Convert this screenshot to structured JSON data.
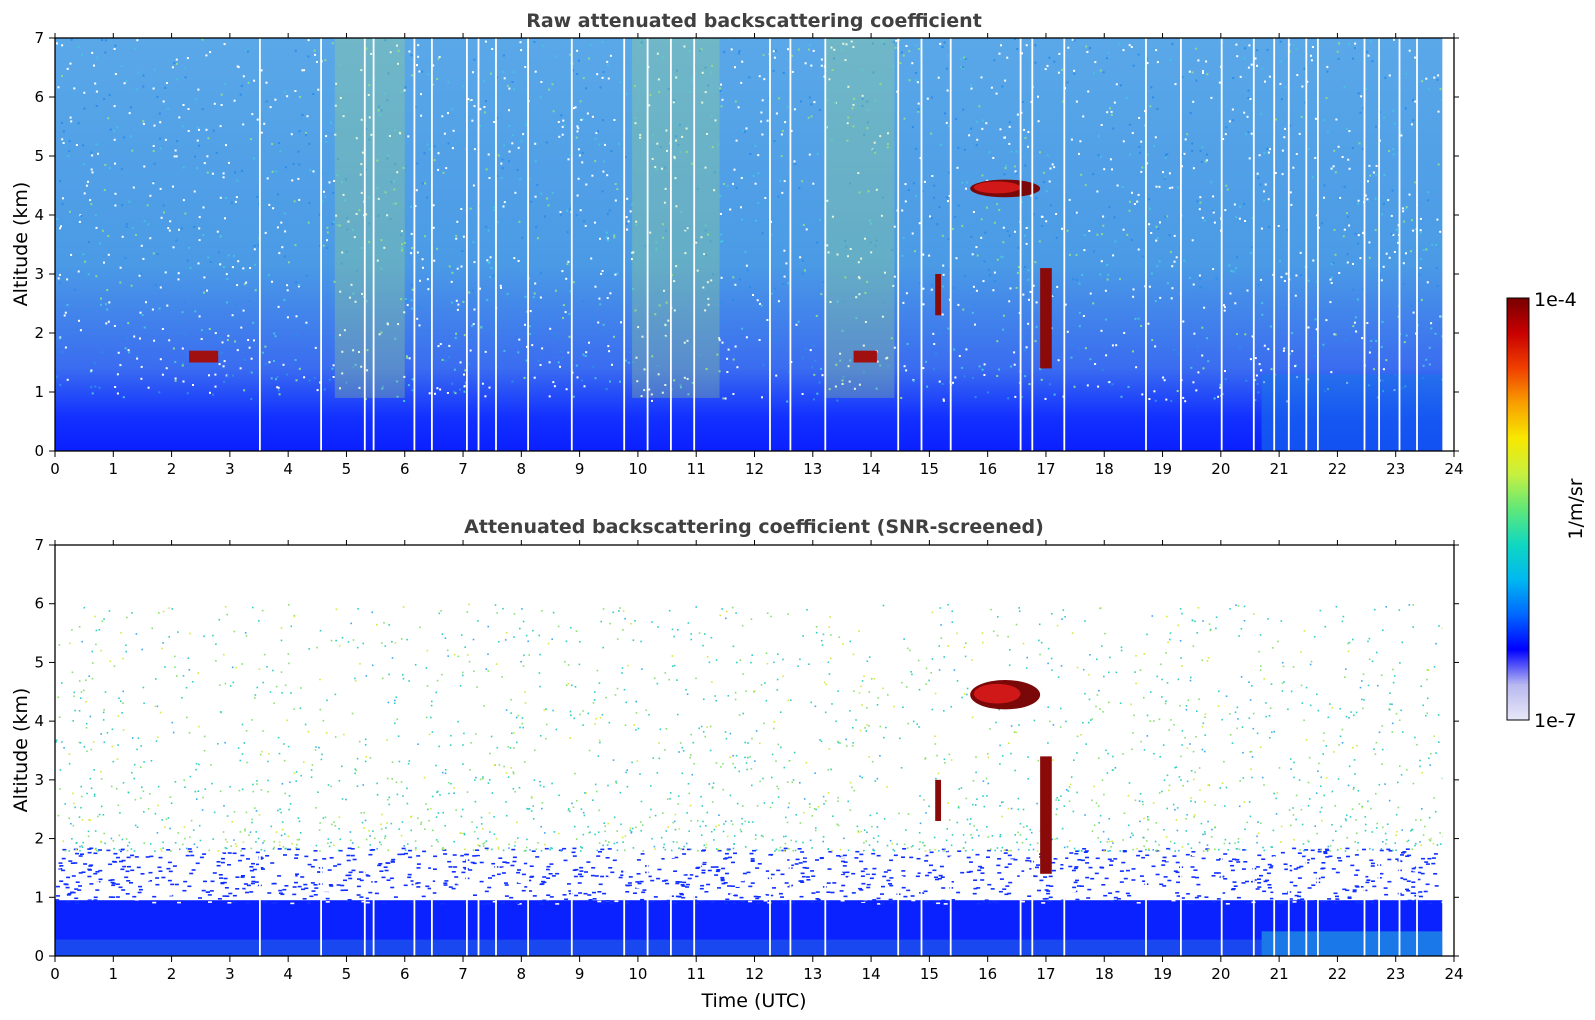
{
  "chart_data": [
    {
      "type": "heatmap",
      "title": "Raw attenuated backscattering coefficient",
      "xlabel": "",
      "ylabel": "Altitude (km)",
      "xlim": [
        0,
        24
      ],
      "ylim": [
        0,
        7
      ],
      "xticks": [
        0,
        1,
        2,
        3,
        4,
        5,
        6,
        7,
        8,
        9,
        10,
        11,
        12,
        13,
        14,
        15,
        16,
        17,
        18,
        19,
        20,
        21,
        22,
        23,
        24
      ],
      "yticks": [
        0,
        1,
        2,
        3,
        4,
        5,
        6,
        7
      ],
      "data_extent_x": [
        0,
        23.8
      ],
      "features": [
        {
          "type": "boundary_layer",
          "x": [
            0,
            23.8
          ],
          "y": [
            0,
            0.6
          ]
        },
        {
          "type": "cloud",
          "x": [
            15.7,
            16.9
          ],
          "y": [
            4.3,
            4.6
          ]
        },
        {
          "type": "cloud_streak",
          "x": [
            15.1,
            15.2
          ],
          "y": [
            2.3,
            3.0
          ]
        },
        {
          "type": "cloud_streak",
          "x": [
            16.9,
            17.1
          ],
          "y": [
            1.4,
            3.1
          ]
        },
        {
          "type": "aerosol_patch",
          "x": [
            2.3,
            2.8
          ],
          "y": [
            1.5,
            1.7
          ]
        },
        {
          "type": "aerosol_patch",
          "x": [
            13.7,
            14.1
          ],
          "y": [
            1.5,
            1.7
          ]
        }
      ]
    },
    {
      "type": "heatmap",
      "title": "Attenuated backscattering coefficient (SNR-screened)",
      "xlabel": "Time (UTC)",
      "ylabel": "Altitude (km)",
      "xlim": [
        0,
        24
      ],
      "ylim": [
        0,
        7
      ],
      "xticks": [
        0,
        1,
        2,
        3,
        4,
        5,
        6,
        7,
        8,
        9,
        10,
        11,
        12,
        13,
        14,
        15,
        16,
        17,
        18,
        19,
        20,
        21,
        22,
        23,
        24
      ],
      "yticks": [
        0,
        1,
        2,
        3,
        4,
        5,
        6,
        7
      ],
      "data_extent_x": [
        0,
        23.8
      ],
      "features": [
        {
          "type": "boundary_layer",
          "x": [
            0,
            23.8
          ],
          "y": [
            0,
            1.8
          ]
        },
        {
          "type": "cloud",
          "x": [
            15.7,
            16.9
          ],
          "y": [
            4.2,
            4.7
          ]
        },
        {
          "type": "cloud_streak",
          "x": [
            15.1,
            15.2
          ],
          "y": [
            2.3,
            3.0
          ]
        },
        {
          "type": "cloud_streak",
          "x": [
            16.9,
            17.1
          ],
          "y": [
            1.4,
            3.4
          ]
        }
      ]
    }
  ],
  "colorbar": {
    "max_label": "1e-4",
    "min_label": "1e-7",
    "unit_label": "1/m/sr",
    "scale": "log",
    "colors": [
      "#e8e8f8",
      "#b8b8f0",
      "#0000ff",
      "#0068ff",
      "#00b8f0",
      "#10d8c0",
      "#60e878",
      "#c8f040",
      "#f8e800",
      "#f8a000",
      "#f04000",
      "#c80000",
      "#780000"
    ]
  }
}
